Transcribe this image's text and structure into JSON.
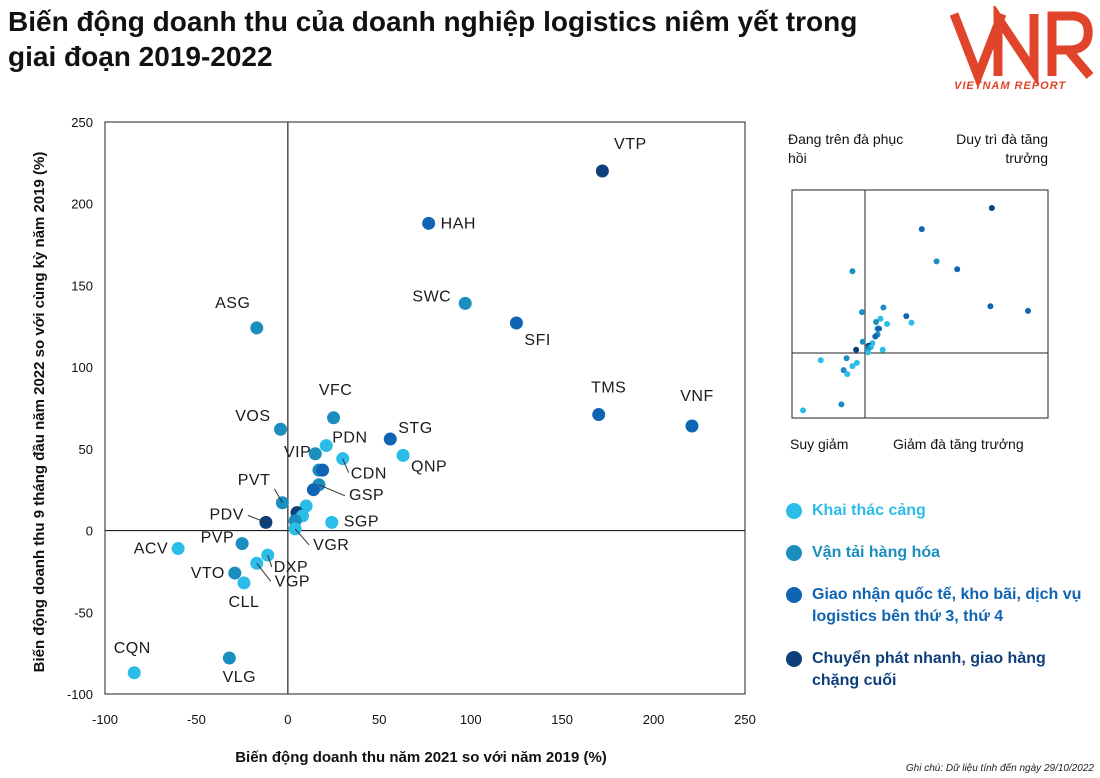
{
  "title": "Biến động doanh thu của doanh nghiệp logistics niêm yết trong giai đoạn 2019-2022",
  "logo": {
    "mark": "VNR",
    "subtitle": "VIETNAM REPORT",
    "color": "#e0442a"
  },
  "note": "Ghi chú: Dữ liệu tính đến ngày 29/10/2022",
  "colors": {
    "port": "#2bbde8",
    "freight": "#1b8ec0",
    "forwarding": "#0f64b3",
    "express": "#0e3f7a"
  },
  "legend": [
    {
      "key": "port",
      "label": "Khai thác cảng"
    },
    {
      "key": "freight",
      "label": "Vận tải hàng hóa"
    },
    {
      "key": "forwarding",
      "label": "Giao nhận quốc tế, kho bãi, dịch vụ logistics bên thứ 3, thứ 4"
    },
    {
      "key": "express",
      "label": "Chuyển phát nhanh, giao hàng chặng cuối"
    }
  ],
  "quadrant_labels": {
    "top_left": "Đang trên đà phục hồi",
    "top_right": "Duy trì đà tăng trưởng",
    "bottom_left": "Suy giảm",
    "bottom_right": "Giảm đà tăng trưởng"
  },
  "chart_data": {
    "type": "scatter",
    "xlabel": "Biến động doanh thu năm 2021 so với năm 2019 (%)",
    "ylabel": "Biến động doanh thu 9 tháng đầu năm 2022 so với cùng kỳ năm 2019 (%)",
    "xlim": [
      -100,
      250
    ],
    "ylim": [
      -100,
      250
    ],
    "xticks": [
      -100,
      -50,
      0,
      50,
      100,
      150,
      200,
      250
    ],
    "yticks": [
      -100,
      -50,
      0,
      50,
      100,
      150,
      200,
      250
    ],
    "grid": false,
    "legend_position": "right",
    "points": [
      {
        "label": "VTP",
        "x": 172,
        "y": 220,
        "group": "express"
      },
      {
        "label": "HAH",
        "x": 77,
        "y": 188,
        "group": "forwarding"
      },
      {
        "label": "SWC",
        "x": 97,
        "y": 139,
        "group": "freight"
      },
      {
        "label": "SFI",
        "x": 125,
        "y": 127,
        "group": "forwarding"
      },
      {
        "label": "ASG",
        "x": -17,
        "y": 124,
        "group": "freight"
      },
      {
        "label": "TMS",
        "x": 170,
        "y": 71,
        "group": "forwarding"
      },
      {
        "label": "VNF",
        "x": 221,
        "y": 64,
        "group": "forwarding"
      },
      {
        "label": "VFC",
        "x": 25,
        "y": 69,
        "group": "freight"
      },
      {
        "label": "VOS",
        "x": -4,
        "y": 62,
        "group": "freight"
      },
      {
        "label": "STG",
        "x": 56,
        "y": 56,
        "group": "forwarding"
      },
      {
        "label": "PDN",
        "x": 21,
        "y": 52,
        "group": "port"
      },
      {
        "label": "VIP",
        "x": 15,
        "y": 47,
        "group": "freight"
      },
      {
        "label": "QNP",
        "x": 63,
        "y": 46,
        "group": "port"
      },
      {
        "label": "CDN",
        "x": 30,
        "y": 44,
        "group": "port"
      },
      {
        "label": "",
        "x": 17,
        "y": 37,
        "group": "freight"
      },
      {
        "label": "",
        "x": 19,
        "y": 37,
        "group": "forwarding"
      },
      {
        "label": "GSP",
        "x": 17,
        "y": 28,
        "group": "freight"
      },
      {
        "label": "",
        "x": 14,
        "y": 25,
        "group": "forwarding"
      },
      {
        "label": "PVT",
        "x": -3,
        "y": 17,
        "group": "freight"
      },
      {
        "label": "",
        "x": 10,
        "y": 15,
        "group": "port"
      },
      {
        "label": "",
        "x": 5,
        "y": 11,
        "group": "express"
      },
      {
        "label": "",
        "x": 8,
        "y": 9,
        "group": "port"
      },
      {
        "label": "SGP",
        "x": 24,
        "y": 5,
        "group": "port"
      },
      {
        "label": "",
        "x": 4,
        "y": 6,
        "group": "freight"
      },
      {
        "label": "PDV",
        "x": -12,
        "y": 5,
        "group": "express"
      },
      {
        "label": "VGR",
        "x": 4,
        "y": 1,
        "group": "port"
      },
      {
        "label": "ACV",
        "x": -60,
        "y": -11,
        "group": "port"
      },
      {
        "label": "PVP",
        "x": -25,
        "y": -8,
        "group": "freight"
      },
      {
        "label": "DXP",
        "x": -11,
        "y": -15,
        "group": "port"
      },
      {
        "label": "VGP",
        "x": -17,
        "y": -20,
        "group": "port"
      },
      {
        "label": "VTO",
        "x": -29,
        "y": -26,
        "group": "freight"
      },
      {
        "label": "CLL",
        "x": -24,
        "y": -32,
        "group": "port"
      },
      {
        "label": "CQN",
        "x": -84,
        "y": -87,
        "group": "port"
      },
      {
        "label": "VLG",
        "x": -32,
        "y": -78,
        "group": "freight"
      }
    ]
  }
}
